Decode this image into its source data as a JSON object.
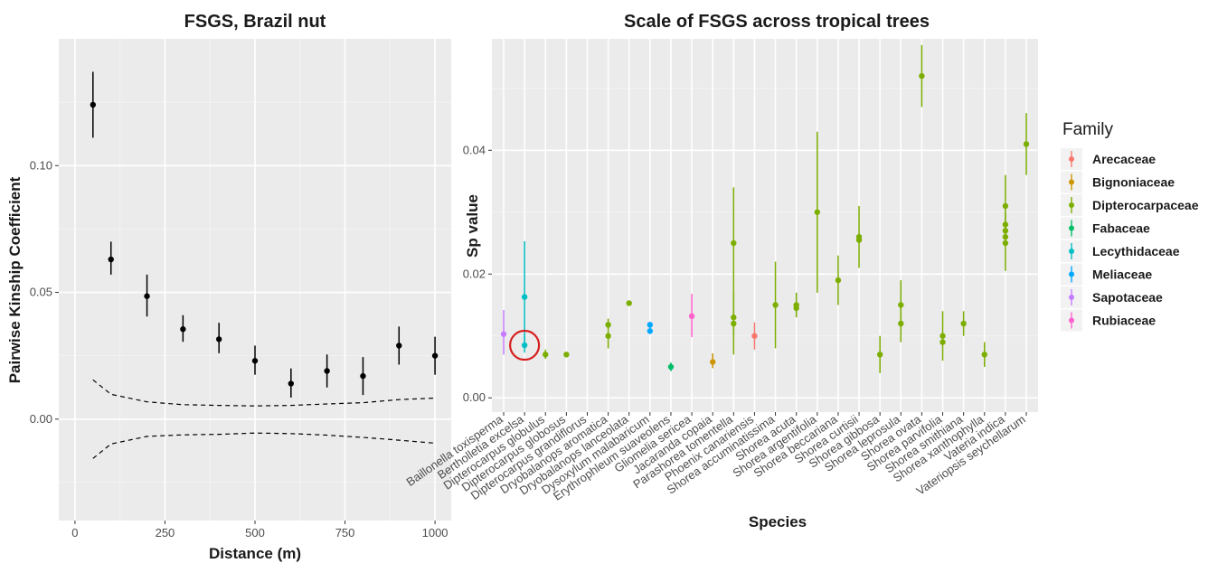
{
  "chart_data": [
    {
      "type": "scatter",
      "title": "FSGS, Brazil nut",
      "xlabel": "Distance (m)",
      "ylabel": "Pairwise Kinship Coefficient",
      "xlim": [
        -45,
        1045
      ],
      "ylim": [
        -0.04,
        0.15
      ],
      "xticks": [
        0,
        250,
        500,
        750,
        1000
      ],
      "yticks": [
        0.0,
        0.05,
        0.1
      ],
      "ytick_labels": [
        "0.00",
        "0.05",
        "0.10"
      ],
      "grid": true,
      "points": [
        {
          "x": 50,
          "y": 0.124,
          "lo": 0.111,
          "hi": 0.137
        },
        {
          "x": 100,
          "y": 0.063,
          "lo": 0.057,
          "hi": 0.07
        },
        {
          "x": 200,
          "y": 0.0485,
          "lo": 0.0405,
          "hi": 0.057
        },
        {
          "x": 300,
          "y": 0.0355,
          "lo": 0.0305,
          "hi": 0.041
        },
        {
          "x": 400,
          "y": 0.0315,
          "lo": 0.026,
          "hi": 0.038
        },
        {
          "x": 500,
          "y": 0.023,
          "lo": 0.0175,
          "hi": 0.029
        },
        {
          "x": 600,
          "y": 0.014,
          "lo": 0.0085,
          "hi": 0.02
        },
        {
          "x": 700,
          "y": 0.019,
          "lo": 0.0125,
          "hi": 0.0255
        },
        {
          "x": 800,
          "y": 0.017,
          "lo": 0.0095,
          "hi": 0.0245
        },
        {
          "x": 900,
          "y": 0.029,
          "lo": 0.0215,
          "hi": 0.0365
        },
        {
          "x": 1000,
          "y": 0.025,
          "lo": 0.0175,
          "hi": 0.0325
        }
      ],
      "envelope_upper": [
        [
          50,
          0.0155
        ],
        [
          100,
          0.0098
        ],
        [
          200,
          0.0068
        ],
        [
          300,
          0.0057
        ],
        [
          400,
          0.0054
        ],
        [
          500,
          0.0052
        ],
        [
          600,
          0.0054
        ],
        [
          700,
          0.006
        ],
        [
          800,
          0.0065
        ],
        [
          900,
          0.0077
        ],
        [
          1000,
          0.0083
        ]
      ],
      "envelope_lower": [
        [
          50,
          -0.0155
        ],
        [
          100,
          -0.0098
        ],
        [
          200,
          -0.0068
        ],
        [
          300,
          -0.0062
        ],
        [
          400,
          -0.006
        ],
        [
          500,
          -0.0055
        ],
        [
          600,
          -0.0057
        ],
        [
          700,
          -0.0063
        ],
        [
          800,
          -0.0072
        ],
        [
          900,
          -0.0083
        ],
        [
          1000,
          -0.0095
        ]
      ]
    },
    {
      "type": "scatter",
      "title": "Scale of FSGS across tropical trees",
      "xlabel": "Species",
      "ylabel": "Sp value",
      "ylim": [
        -0.0023,
        0.058
      ],
      "yticks": [
        0.0,
        0.02,
        0.04
      ],
      "ytick_labels": [
        "0.00",
        "0.02",
        "0.04"
      ],
      "grid": true,
      "legend_title": "Family",
      "legend_position": "right",
      "families": [
        {
          "name": "Arecaceae",
          "color": "#F8766D"
        },
        {
          "name": "Bignoniaceae",
          "color": "#CD9600"
        },
        {
          "name": "Dipterocarpaceae",
          "color": "#7CAE00"
        },
        {
          "name": "Fabaceae",
          "color": "#00BE67"
        },
        {
          "name": "Lecythidaceae",
          "color": "#00BFC4"
        },
        {
          "name": "Meliaceae",
          "color": "#00A9FF"
        },
        {
          "name": "Sapotaceae",
          "color": "#C77CFF"
        },
        {
          "name": "Rubiaceae",
          "color": "#FF61CC"
        }
      ],
      "categories": [
        "Baillonella toxisperma",
        "Bertholletia excelsa",
        "Dipterocarpus globulus",
        "Dipterocarpus globosus",
        "Dipterocarpus grandiflorus",
        "Dryobalanops aromatica",
        "Dryobalanops lanceolata",
        "Dysoxylum malabaricum",
        "Erythrophleum suaveolens",
        "Gliomelia sericea",
        "Jacaranda copaia",
        "Parashorea tomentella",
        "Phoenix canariensis",
        "Shorea accuminatissima",
        "Shorea acuta",
        "Shorea argentifolia",
        "Shorea beccariana",
        "Shorea curtisii",
        "Shorea gibbosa",
        "Shorea leprosula",
        "Shorea ovata",
        "Shorea parvifolia",
        "Shorea smithiana",
        "Shorea xanthophylla",
        "Vateria indica",
        "Vateriopsis seychellarum"
      ],
      "points": [
        {
          "cat": 0,
          "family": "Sapotaceae",
          "y": 0.0103,
          "lo": 0.007,
          "hi": 0.0142
        },
        {
          "cat": 1,
          "family": "Lecythidaceae",
          "y": 0.0163,
          "lo": 0.008,
          "hi": 0.0253
        },
        {
          "cat": 1,
          "family": "Lecythidaceae",
          "y": 0.0085,
          "lo": 0.0073,
          "hi": 0.0102
        },
        {
          "cat": 2,
          "family": "Dipterocarpaceae",
          "y": 0.007,
          "lo": 0.0063,
          "hi": 0.0078
        },
        {
          "cat": 3,
          "family": "Dipterocarpaceae",
          "y": 0.007,
          "lo": null,
          "hi": null
        },
        {
          "cat": 5,
          "family": "Dipterocarpaceae",
          "y": 0.0118,
          "lo": null,
          "hi": null
        },
        {
          "cat": 5,
          "family": "Dipterocarpaceae",
          "y": 0.01,
          "lo": 0.008,
          "hi": 0.0128
        },
        {
          "cat": 6,
          "family": "Dipterocarpaceae",
          "y": 0.0153,
          "lo": null,
          "hi": null
        },
        {
          "cat": 7,
          "family": "Meliaceae",
          "y": 0.0118,
          "lo": 0.0113,
          "hi": 0.0123
        },
        {
          "cat": 7,
          "family": "Meliaceae",
          "y": 0.0108,
          "lo": 0.0103,
          "hi": 0.0113
        },
        {
          "cat": 8,
          "family": "Fabaceae",
          "y": 0.005,
          "lo": 0.0043,
          "hi": 0.0057
        },
        {
          "cat": 9,
          "family": "Rubiaceae",
          "y": 0.0132,
          "lo": 0.0098,
          "hi": 0.0168
        },
        {
          "cat": 10,
          "family": "Bignoniaceae",
          "y": 0.0058,
          "lo": 0.0048,
          "hi": 0.0072
        },
        {
          "cat": 11,
          "family": "Dipterocarpaceae",
          "y": 0.025,
          "lo": 0.016,
          "hi": 0.034
        },
        {
          "cat": 11,
          "family": "Dipterocarpaceae",
          "y": 0.013,
          "lo": 0.01,
          "hi": 0.016
        },
        {
          "cat": 11,
          "family": "Dipterocarpaceae",
          "y": 0.012,
          "lo": 0.007,
          "hi": 0.017
        },
        {
          "cat": 12,
          "family": "Arecaceae",
          "y": 0.01,
          "lo": 0.0078,
          "hi": 0.0122
        },
        {
          "cat": 13,
          "family": "Dipterocarpaceae",
          "y": 0.015,
          "lo": 0.008,
          "hi": 0.022
        },
        {
          "cat": 14,
          "family": "Dipterocarpaceae",
          "y": 0.015,
          "lo": 0.013,
          "hi": 0.017
        },
        {
          "cat": 14,
          "family": "Dipterocarpaceae",
          "y": 0.0145,
          "lo": null,
          "hi": null
        },
        {
          "cat": 15,
          "family": "Dipterocarpaceae",
          "y": 0.03,
          "lo": 0.017,
          "hi": 0.043
        },
        {
          "cat": 16,
          "family": "Dipterocarpaceae",
          "y": 0.019,
          "lo": 0.015,
          "hi": 0.023
        },
        {
          "cat": 17,
          "family": "Dipterocarpaceae",
          "y": 0.026,
          "lo": 0.021,
          "hi": 0.031
        },
        {
          "cat": 17,
          "family": "Dipterocarpaceae",
          "y": 0.0255,
          "lo": null,
          "hi": null
        },
        {
          "cat": 18,
          "family": "Dipterocarpaceae",
          "y": 0.007,
          "lo": 0.004,
          "hi": 0.01
        },
        {
          "cat": 19,
          "family": "Dipterocarpaceae",
          "y": 0.015,
          "lo": 0.011,
          "hi": 0.019
        },
        {
          "cat": 19,
          "family": "Dipterocarpaceae",
          "y": 0.012,
          "lo": 0.009,
          "hi": 0.015
        },
        {
          "cat": 20,
          "family": "Dipterocarpaceae",
          "y": 0.052,
          "lo": 0.047,
          "hi": 0.057
        },
        {
          "cat": 21,
          "family": "Dipterocarpaceae",
          "y": 0.01,
          "lo": 0.006,
          "hi": 0.014
        },
        {
          "cat": 21,
          "family": "Dipterocarpaceae",
          "y": 0.009,
          "lo": null,
          "hi": null
        },
        {
          "cat": 22,
          "family": "Dipterocarpaceae",
          "y": 0.012,
          "lo": 0.01,
          "hi": 0.014
        },
        {
          "cat": 23,
          "family": "Dipterocarpaceae",
          "y": 0.007,
          "lo": 0.005,
          "hi": 0.009
        },
        {
          "cat": 24,
          "family": "Dipterocarpaceae",
          "y": 0.031,
          "lo": 0.026,
          "hi": 0.036
        },
        {
          "cat": 24,
          "family": "Dipterocarpaceae",
          "y": 0.028,
          "lo": null,
          "hi": null
        },
        {
          "cat": 24,
          "family": "Dipterocarpaceae",
          "y": 0.027,
          "lo": null,
          "hi": null
        },
        {
          "cat": 24,
          "family": "Dipterocarpaceae",
          "y": 0.026,
          "lo": null,
          "hi": null
        },
        {
          "cat": 24,
          "family": "Dipterocarpaceae",
          "y": 0.025,
          "lo": 0.0205,
          "hi": 0.03
        },
        {
          "cat": 25,
          "family": "Dipterocarpaceae",
          "y": 0.041,
          "lo": 0.036,
          "hi": 0.046
        }
      ],
      "annotation": {
        "type": "red-circle",
        "cat": 1,
        "y": 0.0085
      }
    }
  ]
}
